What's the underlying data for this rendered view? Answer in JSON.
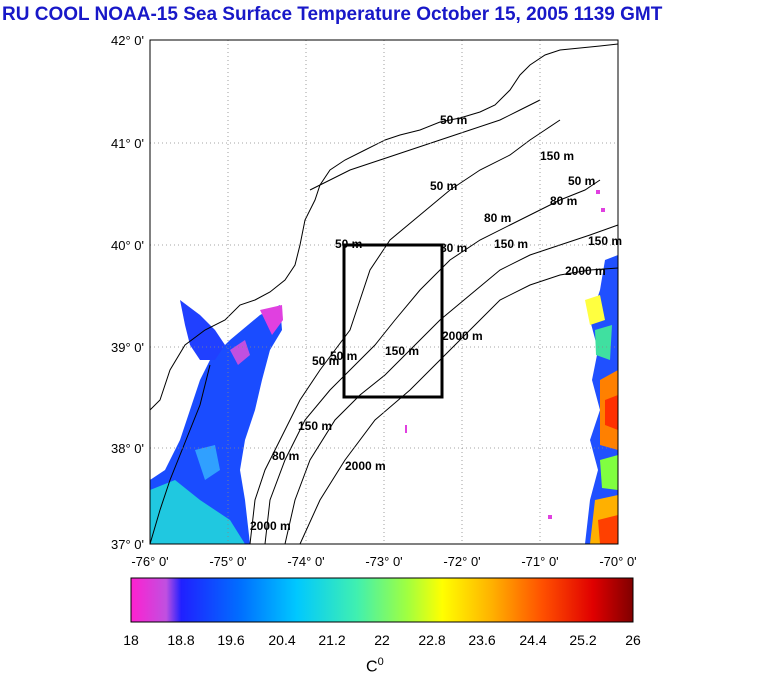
{
  "title": "RU COOL  NOAA-15 Sea Surface Temperature October 15, 2005 1139 GMT",
  "lat_labels": [
    "42° 0'",
    "41° 0'",
    "40° 0'",
    "39° 0'",
    "38° 0'",
    "37° 0'"
  ],
  "lon_labels": [
    "-76° 0'",
    "-75° 0'",
    "-74° 0'",
    "-73° 0'",
    "-72° 0'",
    "-71° 0'",
    "-70° 0'"
  ],
  "contour_labels": [
    "50 m",
    "50 m",
    "50 m",
    "80 m",
    "80 m",
    "150 m",
    "150 m",
    "2000 m",
    "2000 m",
    "2000 m",
    "150 m",
    "80 m",
    "50 m",
    "50 m",
    "150 m",
    "2000 m",
    "80 m",
    "150 m",
    "50 m"
  ],
  "colorbar": {
    "ticks": [
      "18",
      "18.8",
      "19.6",
      "20.4",
      "21.2",
      "22",
      "22.8",
      "23.6",
      "24.4",
      "25.2",
      "26"
    ],
    "unit": "C",
    "unit_sup": "0",
    "min": 18,
    "max": 26
  },
  "box_region": {
    "lon_min": -73.4,
    "lon_max": -72.2,
    "lat_min": 38.5,
    "lat_max": 40.0
  }
}
